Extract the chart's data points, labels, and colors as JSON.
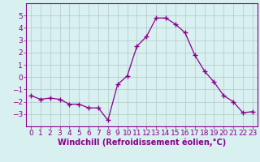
{
  "x": [
    0,
    1,
    2,
    3,
    4,
    5,
    6,
    7,
    8,
    9,
    10,
    11,
    12,
    13,
    14,
    15,
    16,
    17,
    18,
    19,
    20,
    21,
    22,
    23
  ],
  "y": [
    -1.5,
    -1.8,
    -1.7,
    -1.8,
    -2.2,
    -2.2,
    -2.5,
    -2.5,
    -3.5,
    -0.6,
    0.1,
    2.5,
    3.3,
    4.8,
    4.8,
    4.3,
    3.6,
    1.8,
    0.5,
    -0.4,
    -1.5,
    -2.0,
    -2.9,
    -2.8
  ],
  "line_color": "#880088",
  "marker": "+",
  "marker_size": 4.0,
  "line_width": 0.9,
  "bg_color": "#d8f0f0",
  "grid_color": "#b0c8c8",
  "xlabel": "Windchill (Refroidissement éolien,°C)",
  "ylim": [
    -4,
    6
  ],
  "yticks": [
    -3,
    -2,
    -1,
    0,
    1,
    2,
    3,
    4,
    5
  ],
  "xlim": [
    -0.5,
    23.5
  ],
  "xticks": [
    0,
    1,
    2,
    3,
    4,
    5,
    6,
    7,
    8,
    9,
    10,
    11,
    12,
    13,
    14,
    15,
    16,
    17,
    18,
    19,
    20,
    21,
    22,
    23
  ],
  "axis_label_color": "#880088",
  "tick_color": "#880088",
  "xlabel_fontsize": 7.0,
  "tick_fontsize": 6.5,
  "border_color": "#880088",
  "spine_color": "#880088"
}
